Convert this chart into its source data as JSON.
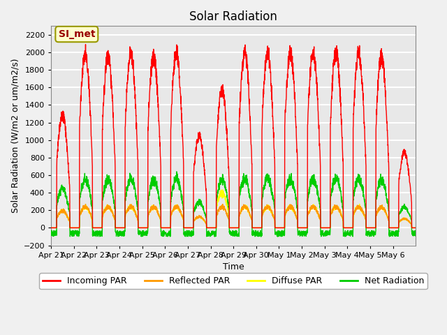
{
  "title": "Solar Radiation",
  "ylabel": "Solar Radiation (W/m2 or um/m2/s)",
  "xlabel": "Time",
  "ylim": [
    -200,
    2300
  ],
  "yticks": [
    -200,
    0,
    200,
    400,
    600,
    800,
    1000,
    1200,
    1400,
    1600,
    1800,
    2000,
    2200
  ],
  "xtick_labels": [
    "Apr 21",
    "Apr 22",
    "Apr 23",
    "Apr 24",
    "Apr 25",
    "Apr 26",
    "Apr 27",
    "Apr 28",
    "Apr 29",
    "Apr 30",
    "May 1",
    "May 2",
    "May 3",
    "May 4",
    "May 5",
    "May 6"
  ],
  "annotation_text": "SI_met",
  "annotation_bg": "#ffffcc",
  "annotation_border": "#999900",
  "annotation_fg": "#990000",
  "colors": {
    "incoming": "#ff0000",
    "reflected": "#ff9900",
    "diffuse": "#ffff00",
    "net": "#00cc00"
  },
  "legend_labels": [
    "Incoming PAR",
    "Reflected PAR",
    "Diffuse PAR",
    "Net Radiation"
  ],
  "background_color": "#e8e8e8",
  "grid_color": "#ffffff",
  "n_days": 16,
  "line_width": 1.0
}
